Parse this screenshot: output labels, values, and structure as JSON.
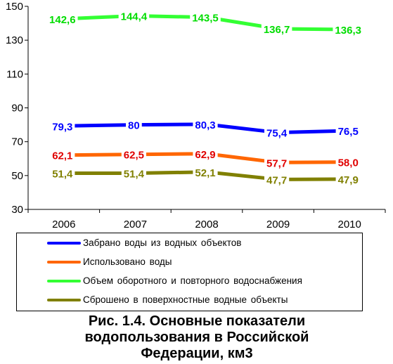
{
  "chart_data": {
    "type": "line",
    "categories": [
      "2006",
      "2007",
      "2008",
      "2009",
      "2010"
    ],
    "ylim": [
      30,
      150
    ],
    "yticks": [
      "30",
      "50",
      "70",
      "90",
      "110",
      "130",
      "150"
    ],
    "grid": false,
    "legend_placement": "bottom",
    "series": [
      {
        "name": "Забрано воды из водных объектов",
        "color": "#0000ff",
        "values": [
          79.3,
          80,
          80.3,
          75.4,
          76.5
        ],
        "labels": [
          "79,3",
          "80",
          "80,3",
          "75,4",
          "76,5"
        ]
      },
      {
        "name": "Использовано воды",
        "color": "#ff6600",
        "label_color": "#e00000",
        "values": [
          62.1,
          62.5,
          62.9,
          57.7,
          58.0
        ],
        "labels": [
          "62,1",
          "62,5",
          "62,9",
          "57,7",
          "58,0"
        ]
      },
      {
        "name": "Объем оборотного и повторного водоснабжения",
        "color": "#33ff33",
        "label_color": "#00dd00",
        "values": [
          142.6,
          144.4,
          143.5,
          136.7,
          136.3
        ],
        "labels": [
          "142,6",
          "144,4",
          "143,5",
          "136,7",
          "136,3"
        ]
      },
      {
        "name": "Сброшено в поверхностные водные объекты",
        "color": "#808000",
        "values": [
          51.4,
          51.4,
          52.1,
          47.7,
          47.9
        ],
        "labels": [
          "51,4",
          "51,4",
          "52,1",
          "47,7",
          "47,9"
        ]
      }
    ]
  },
  "caption": {
    "line1": "Рис. 1.4. Основные показатели",
    "line2": "водопользования в Российской",
    "line3": "Федерации, км3"
  }
}
